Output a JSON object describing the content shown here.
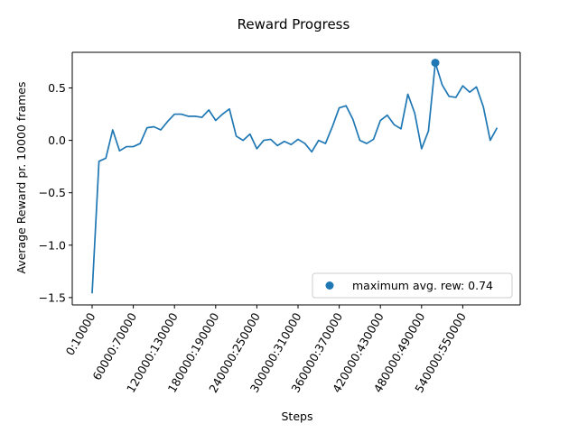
{
  "chart_data": {
    "type": "line",
    "title": "Reward Progress",
    "xlabel": "Steps",
    "ylabel": "Average Reward pr. 10000 frames",
    "x_tick_labels": [
      "0:10000",
      "60000:70000",
      "120000:130000",
      "180000:190000",
      "240000:250000",
      "300000:310000",
      "360000:370000",
      "420000:430000",
      "480000:490000",
      "540000:550000"
    ],
    "x_tick_index_step": 6,
    "y_ticks": [
      -1.5,
      -1.0,
      -0.5,
      0.0,
      0.5
    ],
    "y_tick_labels": [
      "−1.5",
      "−1.0",
      "−0.5",
      "0.0",
      "0.5"
    ],
    "ylim": [
      -1.57,
      0.84
    ],
    "grid": false,
    "legend_position": "lower right",
    "line_color": "#1f77b4",
    "series": [
      {
        "values": [
          -1.46,
          -0.2,
          -0.17,
          0.1,
          -0.1,
          -0.06,
          -0.06,
          -0.03,
          0.12,
          0.13,
          0.1,
          0.18,
          0.25,
          0.25,
          0.23,
          0.23,
          0.22,
          0.29,
          0.19,
          0.25,
          0.3,
          0.04,
          0.0,
          0.06,
          -0.08,
          0.0,
          0.01,
          -0.05,
          -0.01,
          -0.04,
          0.01,
          -0.03,
          -0.11,
          0.0,
          -0.03,
          0.13,
          0.31,
          0.33,
          0.2,
          0.0,
          -0.03,
          0.01,
          0.19,
          0.24,
          0.15,
          0.11,
          0.44,
          0.26,
          -0.08,
          0.09,
          0.74,
          0.53,
          0.42,
          0.41,
          0.52,
          0.46,
          0.51,
          0.32,
          0.0,
          0.12
        ]
      }
    ],
    "max_point": {
      "index": 50,
      "value": 0.74
    },
    "legend": {
      "marker_label": "maximum avg. rew: 0.74"
    }
  }
}
